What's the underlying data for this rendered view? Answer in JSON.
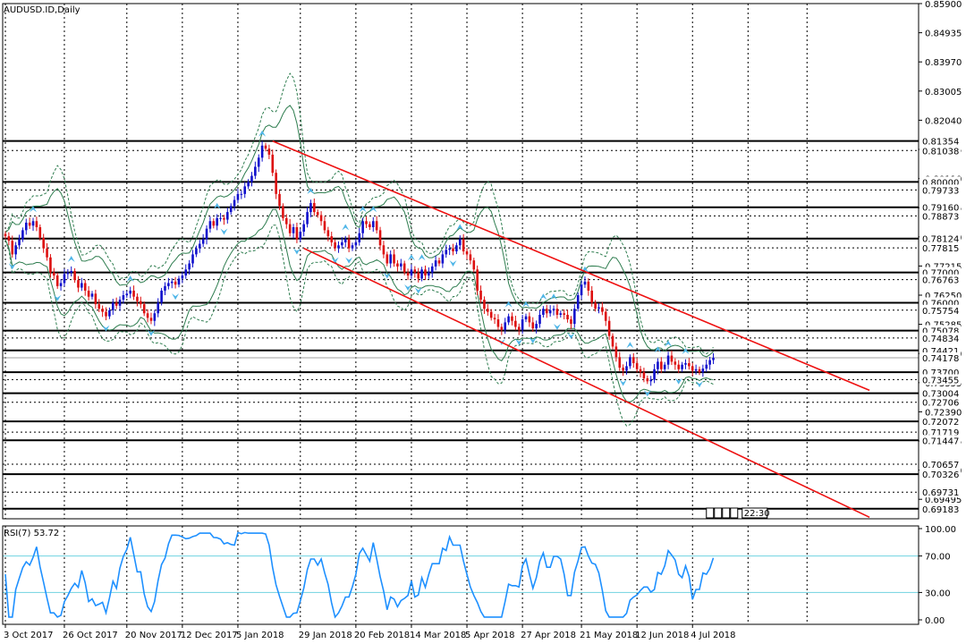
{
  "chart_data": {
    "type": "candlestick",
    "title": "AUDUSD.ID,Daily",
    "price_range": [
      0.6885,
      0.859
    ],
    "y_ticks": [
      "0.85900",
      "0.84935",
      "0.83970",
      "0.83005",
      "0.82040",
      "0.81075",
      "0.80110",
      "0.79145",
      "0.78180",
      "0.77215",
      "0.76250",
      "0.75285",
      "0.74320",
      "0.73355",
      "0.72390",
      "0.71425",
      "0.70460",
      "0.69495"
    ],
    "tagged_levels": [
      {
        "label": "0.81354",
        "value": 0.81354
      },
      {
        "label": "0.81038",
        "value": 0.81038
      },
      {
        "label": "0.80000",
        "value": 0.8
      },
      {
        "label": "0.79733",
        "value": 0.79733
      },
      {
        "label": "0.79160",
        "value": 0.7916
      },
      {
        "label": "0.78873",
        "value": 0.78873
      },
      {
        "label": "0.78124",
        "value": 0.78124
      },
      {
        "label": "0.77815",
        "value": 0.77815
      },
      {
        "label": "0.77000",
        "value": 0.77
      },
      {
        "label": "0.76763",
        "value": 0.76763
      },
      {
        "label": "0.76000",
        "value": 0.76
      },
      {
        "label": "0.75754",
        "value": 0.75754
      },
      {
        "label": "0.75078",
        "value": 0.75078
      },
      {
        "label": "0.74834",
        "value": 0.74834
      },
      {
        "label": "0.74421",
        "value": 0.74421
      },
      {
        "label": "0.74178",
        "value": 0.74178
      },
      {
        "label": "0.73700",
        "value": 0.737
      },
      {
        "label": "0.73455",
        "value": 0.73455
      },
      {
        "label": "0.73004",
        "value": 0.73004
      },
      {
        "label": "0.72706",
        "value": 0.72706
      },
      {
        "label": "0.72072",
        "value": 0.72072
      },
      {
        "label": "0.71719",
        "value": 0.71719
      },
      {
        "label": "0.71447",
        "value": 0.71447
      },
      {
        "label": "0.70657",
        "value": 0.70657
      },
      {
        "label": "0.70326",
        "value": 0.70326
      },
      {
        "label": "0.69731",
        "value": 0.69731
      },
      {
        "label": "0.69183",
        "value": 0.69183
      }
    ],
    "current_price": 0.74178,
    "x_ticks": [
      {
        "label": "3 Oct 2017",
        "bar": 0
      },
      {
        "label": "26 Oct 2017",
        "bar": 17
      },
      {
        "label": "20 Nov 2017",
        "bar": 35
      },
      {
        "label": "12 Dec 2017",
        "bar": 51
      },
      {
        "label": "5 Jan 2018",
        "bar": 67
      },
      {
        "label": "29 Jan 2018",
        "bar": 85
      },
      {
        "label": "20 Feb 2018",
        "bar": 101
      },
      {
        "label": "14 Mar 2018",
        "bar": 117
      },
      {
        "label": "5 Apr 2018",
        "bar": 133
      },
      {
        "label": "27 Apr 2018",
        "bar": 149
      },
      {
        "label": "21 May 2018",
        "bar": 166
      },
      {
        "label": "12 Jun 2018",
        "bar": 182
      },
      {
        "label": "4 Jul 2018",
        "bar": 198
      }
    ],
    "close_series": [
      0.782,
      0.7805,
      0.776,
      0.779,
      0.781,
      0.784,
      0.7865,
      0.7855,
      0.787,
      0.785,
      0.7815,
      0.778,
      0.775,
      0.77,
      0.769,
      0.7655,
      0.7665,
      0.7695,
      0.77,
      0.7705,
      0.7675,
      0.765,
      0.7665,
      0.764,
      0.762,
      0.763,
      0.7595,
      0.758,
      0.757,
      0.7555,
      0.7575,
      0.76,
      0.759,
      0.761,
      0.7625,
      0.763,
      0.764,
      0.762,
      0.7605,
      0.7595,
      0.7565,
      0.755,
      0.754,
      0.7565,
      0.76,
      0.764,
      0.7655,
      0.7665,
      0.767,
      0.766,
      0.768,
      0.769,
      0.771,
      0.773,
      0.776,
      0.778,
      0.7795,
      0.781,
      0.7845,
      0.787,
      0.7855,
      0.788,
      0.788,
      0.7875,
      0.79,
      0.792,
      0.794,
      0.796,
      0.796,
      0.7985,
      0.8,
      0.802,
      0.805,
      0.808,
      0.812,
      0.811,
      0.809,
      0.803,
      0.796,
      0.792,
      0.788,
      0.786,
      0.783,
      0.785,
      0.781,
      0.7835,
      0.786,
      0.79,
      0.793,
      0.79,
      0.789,
      0.787,
      0.784,
      0.782,
      0.78,
      0.778,
      0.779,
      0.78,
      0.781,
      0.778,
      0.779,
      0.78,
      0.783,
      0.787,
      0.786,
      0.785,
      0.787,
      0.784,
      0.779,
      0.776,
      0.773,
      0.776,
      0.773,
      0.772,
      0.773,
      0.77,
      0.769,
      0.771,
      0.77,
      0.768,
      0.771,
      0.769,
      0.77,
      0.772,
      0.774,
      0.773,
      0.776,
      0.7775,
      0.778,
      0.777,
      0.779,
      0.781,
      0.777,
      0.776,
      0.774,
      0.771,
      0.764,
      0.761,
      0.758,
      0.757,
      0.755,
      0.7545,
      0.752,
      0.751,
      0.7535,
      0.7555,
      0.754,
      0.752,
      0.751,
      0.7545,
      0.7555,
      0.7535,
      0.7515,
      0.753,
      0.756,
      0.758,
      0.7565,
      0.7575,
      0.758,
      0.756,
      0.7565,
      0.756,
      0.7545,
      0.753,
      0.758,
      0.7625,
      0.766,
      0.767,
      0.764,
      0.76,
      0.758,
      0.7585,
      0.757,
      0.754,
      0.749,
      0.7455,
      0.742,
      0.7385,
      0.7375,
      0.739,
      0.742,
      0.74,
      0.738,
      0.737,
      0.735,
      0.734,
      0.7345,
      0.738,
      0.7405,
      0.738,
      0.7395,
      0.7425,
      0.7405,
      0.7395,
      0.738,
      0.7395,
      0.74,
      0.739,
      0.7375,
      0.738,
      0.737,
      0.7382,
      0.7395,
      0.741,
      0.7418
    ],
    "channel": {
      "upper": {
        "from": {
          "bar": 77,
          "price": 0.8135
        },
        "to": {
          "bar": 249,
          "price": 0.731
        }
      },
      "lower": {
        "from": {
          "bar": 86,
          "price": 0.778
        },
        "to": {
          "bar": 249,
          "price": 0.689
        }
      }
    },
    "rsi": {
      "label": "RSI(7) 53.72",
      "period": 7,
      "last": 53.72,
      "levels": [
        70,
        30
      ],
      "ticks": [
        "100.00",
        "70.00",
        "30.00",
        "0.00"
      ]
    },
    "time_label": "22:30",
    "colors": {
      "bull": "#1010cc",
      "bear": "#dd1010",
      "channel": "#ee1111",
      "rsi": "#1e90ff",
      "band": "#2e7d4f",
      "arrow": "#4fb6e8"
    }
  }
}
